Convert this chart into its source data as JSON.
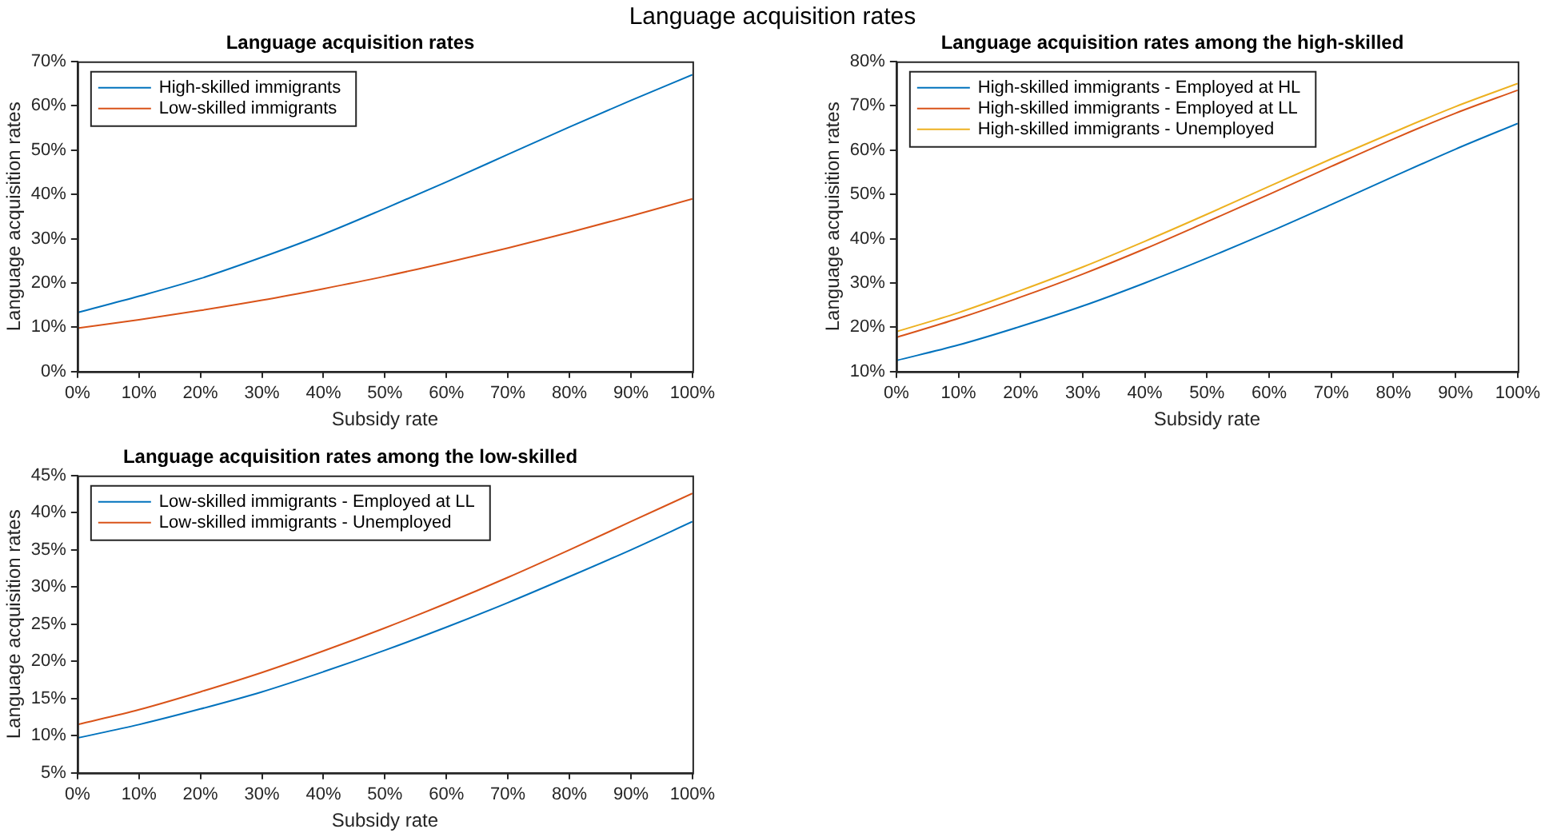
{
  "chart_data": [
    {
      "type": "line",
      "title": "Language acquisition rates",
      "annotations": [
        "Language acquisition rates"
      ],
      "xlabel": "Subsidy rate",
      "ylabel": "Language acquisition rates",
      "x": [
        0,
        10,
        20,
        30,
        40,
        50,
        60,
        70,
        80,
        90,
        100
      ],
      "series": [
        {
          "name": "High-skilled immigrants",
          "color": "#0072bd",
          "values": [
            13.3,
            17,
            21,
            25.8,
            31,
            36.8,
            42.8,
            49,
            55.2,
            61.2,
            67
          ]
        },
        {
          "name": "Low-skilled immigrants",
          "color": "#d95319",
          "values": [
            9.8,
            11.7,
            13.8,
            16.1,
            18.7,
            21.5,
            24.6,
            27.9,
            31.4,
            35.1,
            39
          ]
        }
      ],
      "xlim": [
        0,
        100
      ],
      "xticks": [
        {
          "value": 0,
          "label": "0%"
        },
        {
          "value": 10,
          "label": "10%"
        },
        {
          "value": 20,
          "label": "20%"
        },
        {
          "value": 30,
          "label": "30%"
        },
        {
          "value": 40,
          "label": "40%"
        },
        {
          "value": 50,
          "label": "50%"
        },
        {
          "value": 60,
          "label": "60%"
        },
        {
          "value": 70,
          "label": "70%"
        },
        {
          "value": 80,
          "label": "80%"
        },
        {
          "value": 90,
          "label": "90%"
        },
        {
          "value": 100,
          "label": "100%"
        }
      ],
      "ylim": [
        0,
        70
      ],
      "yticks": [
        {
          "value": 0,
          "label": "0%"
        },
        {
          "value": 10,
          "label": "10%"
        },
        {
          "value": 20,
          "label": "20%"
        },
        {
          "value": 30,
          "label": "30%"
        },
        {
          "value": 40,
          "label": "40%"
        },
        {
          "value": 50,
          "label": "50%"
        },
        {
          "value": 60,
          "label": "60%"
        },
        {
          "value": 70,
          "label": "70%"
        }
      ],
      "legend": "top left",
      "marker": "none",
      "line_style": "solid",
      "grid": false
    },
    {
      "type": "line",
      "title": "Language acquisition rates among the high-skilled",
      "xlabel": "Subsidy rate",
      "ylabel": "Language acquisition rates",
      "x": [
        0,
        10,
        20,
        30,
        40,
        50,
        60,
        70,
        80,
        90,
        100
      ],
      "series": [
        {
          "name": "High-skilled immigrants - Employed at HL",
          "color": "#0072bd",
          "values": [
            12.5,
            16,
            20.2,
            24.8,
            30,
            35.6,
            41.5,
            47.7,
            54,
            60.2,
            66
          ]
        },
        {
          "name": "High-skilled immigrants - Employed at LL",
          "color": "#d95319",
          "values": [
            17.7,
            22,
            26.8,
            32,
            37.7,
            43.8,
            50,
            56.3,
            62.5,
            68.3,
            73.5
          ]
        },
        {
          "name": "High-skilled immigrants - Unemployed",
          "color": "#edb120",
          "values": [
            19,
            23.3,
            28.3,
            33.6,
            39.4,
            45.5,
            51.8,
            58,
            64,
            69.8,
            75
          ]
        }
      ],
      "xlim": [
        0,
        100
      ],
      "xticks": [
        {
          "value": 0,
          "label": "0%"
        },
        {
          "value": 10,
          "label": "10%"
        },
        {
          "value": 20,
          "label": "20%"
        },
        {
          "value": 30,
          "label": "30%"
        },
        {
          "value": 40,
          "label": "40%"
        },
        {
          "value": 50,
          "label": "50%"
        },
        {
          "value": 60,
          "label": "60%"
        },
        {
          "value": 70,
          "label": "70%"
        },
        {
          "value": 80,
          "label": "80%"
        },
        {
          "value": 90,
          "label": "90%"
        },
        {
          "value": 100,
          "label": "100%"
        }
      ],
      "ylim": [
        10,
        80
      ],
      "yticks": [
        {
          "value": 10,
          "label": "10%"
        },
        {
          "value": 20,
          "label": "20%"
        },
        {
          "value": 30,
          "label": "30%"
        },
        {
          "value": 40,
          "label": "40%"
        },
        {
          "value": 50,
          "label": "50%"
        },
        {
          "value": 60,
          "label": "60%"
        },
        {
          "value": 70,
          "label": "70%"
        },
        {
          "value": 80,
          "label": "80%"
        }
      ],
      "legend": "top left",
      "marker": "none",
      "line_style": "solid",
      "grid": false
    },
    {
      "type": "line",
      "title": "Language acquisition rates among the low-skilled",
      "xlabel": "Subsidy rate",
      "ylabel": "Language acquisition rates",
      "x": [
        0,
        10,
        20,
        30,
        40,
        50,
        60,
        70,
        80,
        90,
        100
      ],
      "series": [
        {
          "name": "Low-skilled immigrants - Employed at LL",
          "color": "#0072bd",
          "values": [
            9.7,
            11.5,
            13.6,
            15.9,
            18.6,
            21.5,
            24.6,
            27.9,
            31.4,
            35,
            38.8
          ]
        },
        {
          "name": "Low-skilled immigrants - Unemployed",
          "color": "#d95319",
          "values": [
            11.5,
            13.5,
            15.9,
            18.5,
            21.4,
            24.5,
            27.8,
            31.3,
            35,
            38.8,
            42.6
          ]
        }
      ],
      "xlim": [
        0,
        100
      ],
      "xticks": [
        {
          "value": 0,
          "label": "0%"
        },
        {
          "value": 10,
          "label": "10%"
        },
        {
          "value": 20,
          "label": "20%"
        },
        {
          "value": 30,
          "label": "30%"
        },
        {
          "value": 40,
          "label": "40%"
        },
        {
          "value": 50,
          "label": "50%"
        },
        {
          "value": 60,
          "label": "60%"
        },
        {
          "value": 70,
          "label": "70%"
        },
        {
          "value": 80,
          "label": "80%"
        },
        {
          "value": 90,
          "label": "90%"
        },
        {
          "value": 100,
          "label": "100%"
        }
      ],
      "ylim": [
        5,
        45
      ],
      "yticks": [
        {
          "value": 5,
          "label": "5%"
        },
        {
          "value": 10,
          "label": "10%"
        },
        {
          "value": 15,
          "label": "15%"
        },
        {
          "value": 20,
          "label": "20%"
        },
        {
          "value": 25,
          "label": "25%"
        },
        {
          "value": 30,
          "label": "30%"
        },
        {
          "value": 35,
          "label": "35%"
        },
        {
          "value": 40,
          "label": "40%"
        },
        {
          "value": 45,
          "label": "45%"
        }
      ],
      "legend": "top left",
      "marker": "none",
      "line_style": "solid",
      "grid": false
    }
  ]
}
